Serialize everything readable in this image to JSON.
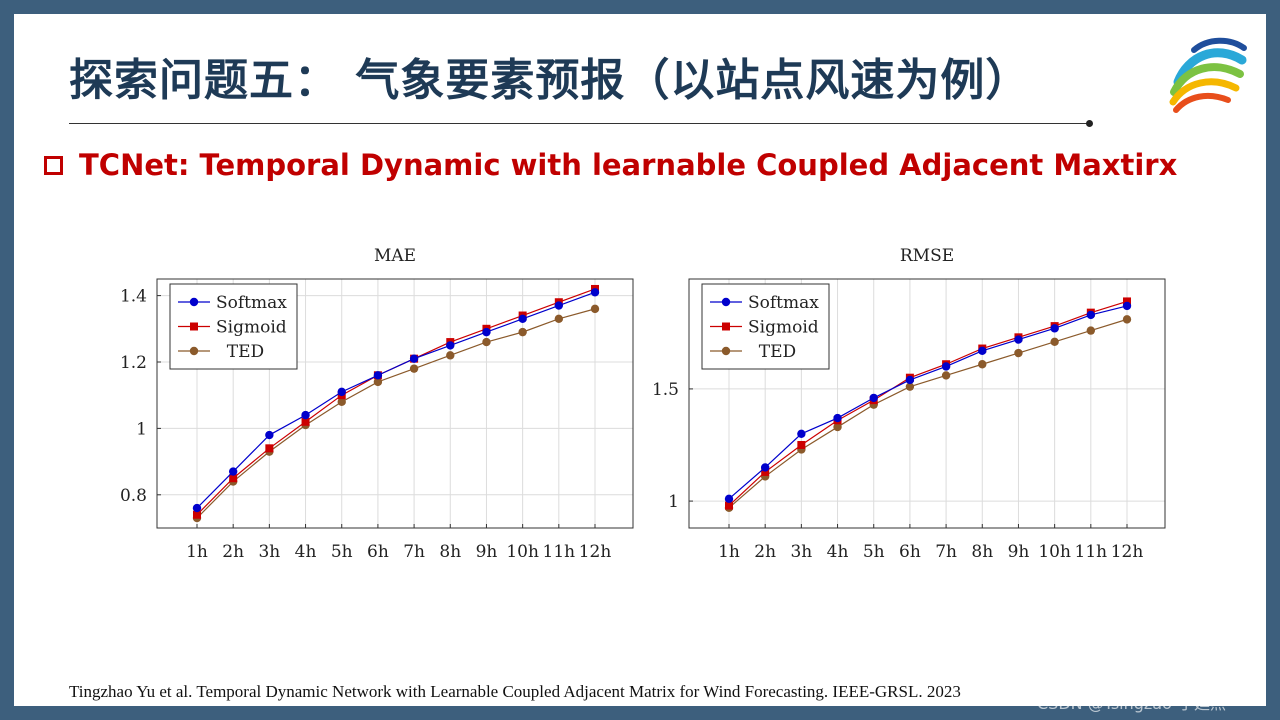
{
  "slide": {
    "title": "探索问题五： 气象要素预报（以站点风速为例）",
    "subtitle": "TCNet: Temporal Dynamic with learnable Coupled Adjacent Maxtirx",
    "citation": "Tingzhao  Yu et al. Temporal Dynamic  Network with Learnable Coupled Adjacent Matrix for Wind Forecasting. IEEE-GRSL. 2023",
    "watermark": "CSDN @Tsingzao-于廷照",
    "bullet_icon": "hollow-square-bullet",
    "logo_icon": "colorful-arc-logo"
  },
  "colors": {
    "title": "#1e3a56",
    "accent": "#c00000",
    "border": "#3d5f7d",
    "Softmax": "#0000cc",
    "Sigmoid": "#cc0000",
    "TED": "#8b5a2b"
  },
  "chart_data": [
    {
      "type": "line",
      "title": "MAE",
      "categories": [
        "1h",
        "2h",
        "3h",
        "4h",
        "5h",
        "6h",
        "7h",
        "8h",
        "9h",
        "10h",
        "11h",
        "12h"
      ],
      "ylim": [
        0.7,
        1.45
      ],
      "yticks": [
        0.8,
        1,
        1.2,
        1.4
      ],
      "ytick_labels": [
        "0.8",
        "1",
        "1.2",
        "1.4"
      ],
      "grid": true,
      "legend": "top-left",
      "series": [
        {
          "name": "Softmax",
          "marker": "circle",
          "values": [
            0.76,
            0.87,
            0.98,
            1.04,
            1.11,
            1.16,
            1.21,
            1.25,
            1.29,
            1.33,
            1.37,
            1.41
          ]
        },
        {
          "name": "Sigmoid",
          "marker": "square",
          "values": [
            0.74,
            0.85,
            0.94,
            1.02,
            1.1,
            1.16,
            1.21,
            1.26,
            1.3,
            1.34,
            1.38,
            1.42
          ]
        },
        {
          "name": "TED",
          "marker": "circle",
          "values": [
            0.73,
            0.84,
            0.93,
            1.01,
            1.08,
            1.14,
            1.18,
            1.22,
            1.26,
            1.29,
            1.33,
            1.36
          ]
        }
      ]
    },
    {
      "type": "line",
      "title": "RMSE",
      "categories": [
        "1h",
        "2h",
        "3h",
        "4h",
        "5h",
        "6h",
        "7h",
        "8h",
        "9h",
        "10h",
        "11h",
        "12h"
      ],
      "ylim": [
        0.88,
        1.99
      ],
      "yticks": [
        1,
        1.5
      ],
      "ytick_labels": [
        "1",
        "1.5"
      ],
      "grid": true,
      "legend": "top-left",
      "series": [
        {
          "name": "Softmax",
          "marker": "circle",
          "values": [
            1.01,
            1.15,
            1.3,
            1.37,
            1.46,
            1.54,
            1.6,
            1.67,
            1.72,
            1.77,
            1.83,
            1.87
          ]
        },
        {
          "name": "Sigmoid",
          "marker": "square",
          "values": [
            0.98,
            1.13,
            1.25,
            1.36,
            1.45,
            1.55,
            1.61,
            1.68,
            1.73,
            1.78,
            1.84,
            1.89
          ]
        },
        {
          "name": "TED",
          "marker": "circle",
          "values": [
            0.97,
            1.11,
            1.23,
            1.33,
            1.43,
            1.51,
            1.56,
            1.61,
            1.66,
            1.71,
            1.76,
            1.81
          ]
        }
      ]
    }
  ]
}
